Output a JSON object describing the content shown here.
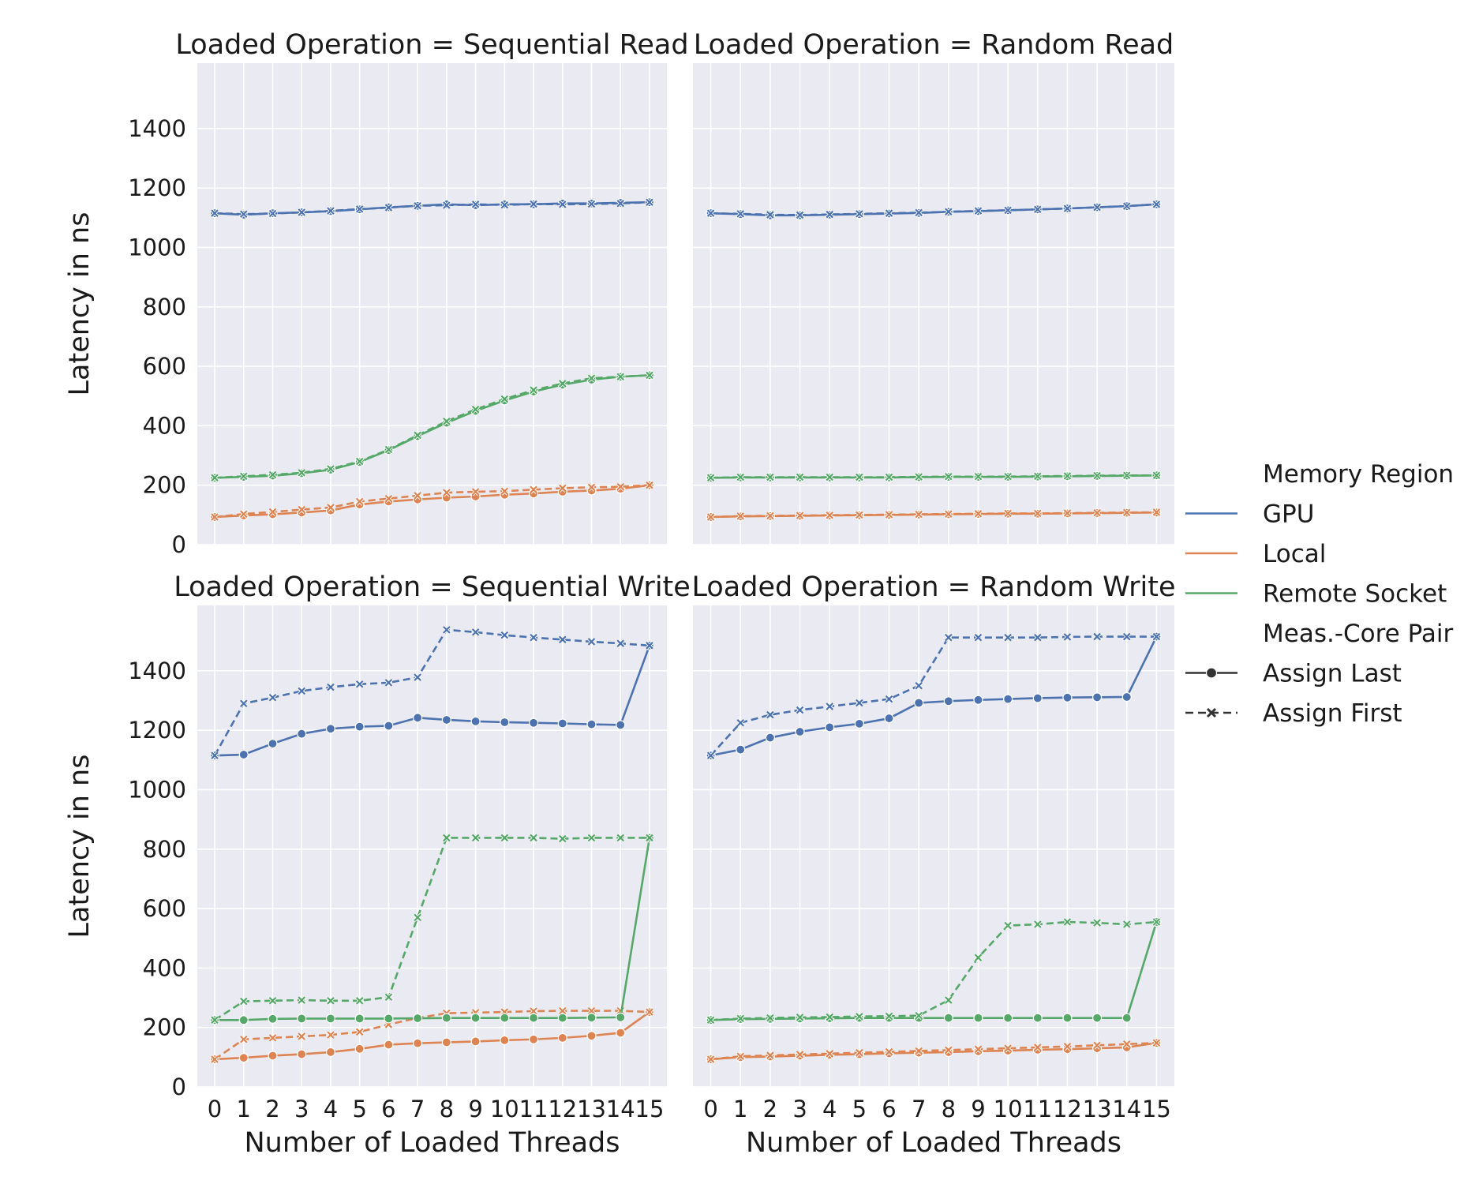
{
  "chart_data": {
    "type": "line",
    "x": [
      0,
      1,
      2,
      3,
      4,
      5,
      6,
      7,
      8,
      9,
      10,
      11,
      12,
      13,
      14,
      15
    ],
    "xlabel": "Number of Loaded Threads",
    "ylabel": "Latency in ns",
    "ylim": [
      0,
      1620
    ],
    "yticks": [
      0,
      200,
      400,
      600,
      800,
      1000,
      1200,
      1400
    ],
    "grid": true,
    "legend": {
      "placement": "right",
      "hue_title": "Memory Region",
      "style_title": "Meas.-Core Pair",
      "hue_entries": [
        {
          "name": "GPU",
          "color": "#4c72b0"
        },
        {
          "name": "Local",
          "color": "#dd8452"
        },
        {
          "name": "Remote Socket",
          "color": "#55a868"
        }
      ],
      "style_entries": [
        {
          "name": "Assign Last",
          "dash": "solid",
          "marker": "circle"
        },
        {
          "name": "Assign First",
          "dash": "dashed",
          "marker": "x"
        }
      ]
    },
    "panels": [
      {
        "title": "Loaded Operation = Sequential Read",
        "series": [
          {
            "region": "GPU",
            "pair": "Assign Last",
            "values": [
              1115,
              1110,
              1115,
              1118,
              1122,
              1128,
              1135,
              1140,
              1145,
              1142,
              1145,
              1145,
              1148,
              1148,
              1150,
              1152
            ]
          },
          {
            "region": "GPU",
            "pair": "Assign First",
            "values": [
              1115,
              1112,
              1114,
              1118,
              1123,
              1129,
              1134,
              1140,
              1142,
              1145,
              1143,
              1146,
              1145,
              1146,
              1148,
              1152
            ]
          },
          {
            "region": "Local",
            "pair": "Assign Last",
            "values": [
              93,
              98,
              102,
              108,
              115,
              135,
              145,
              152,
              158,
              162,
              168,
              172,
              178,
              182,
              188,
              200
            ]
          },
          {
            "region": "Local",
            "pair": "Assign First",
            "values": [
              93,
              103,
              110,
              118,
              125,
              145,
              155,
              165,
              175,
              178,
              180,
              185,
              190,
              193,
              195,
              200
            ]
          },
          {
            "region": "Remote Socket",
            "pair": "Assign Last",
            "values": [
              225,
              228,
              232,
              240,
              252,
              278,
              318,
              365,
              410,
              450,
              485,
              515,
              538,
              555,
              565,
              570
            ]
          },
          {
            "region": "Remote Socket",
            "pair": "Assign First",
            "values": [
              225,
              230,
              235,
              242,
              255,
              280,
              320,
              368,
              415,
              455,
              490,
              520,
              542,
              560,
              565,
              570
            ]
          }
        ]
      },
      {
        "title": "Loaded Operation = Random Read",
        "series": [
          {
            "region": "GPU",
            "pair": "Assign Last",
            "values": [
              1115,
              1112,
              1108,
              1108,
              1110,
              1112,
              1114,
              1116,
              1120,
              1122,
              1125,
              1128,
              1131,
              1135,
              1139,
              1145
            ]
          },
          {
            "region": "GPU",
            "pair": "Assign First",
            "values": [
              1115,
              1113,
              1110,
              1109,
              1111,
              1113,
              1115,
              1117,
              1120,
              1123,
              1125,
              1128,
              1131,
              1135,
              1139,
              1145
            ]
          },
          {
            "region": "Local",
            "pair": "Assign Last",
            "values": [
              93,
              95,
              96,
              97,
              98,
              99,
              100,
              101,
              102,
              103,
              104,
              104,
              105,
              106,
              107,
              108
            ]
          },
          {
            "region": "Local",
            "pair": "Assign First",
            "values": [
              93,
              96,
              97,
              98,
              99,
              100,
              101,
              102,
              103,
              104,
              105,
              105,
              106,
              107,
              108,
              109
            ]
          },
          {
            "region": "Remote Socket",
            "pair": "Assign Last",
            "values": [
              225,
              226,
              226,
              226,
              226,
              226,
              226,
              227,
              228,
              228,
              228,
              229,
              230,
              231,
              232,
              233
            ]
          },
          {
            "region": "Remote Socket",
            "pair": "Assign First",
            "values": [
              225,
              227,
              227,
              227,
              227,
              227,
              227,
              228,
              229,
              229,
              229,
              230,
              231,
              232,
              233,
              233
            ]
          }
        ]
      },
      {
        "title": "Loaded Operation = Sequential Write",
        "series": [
          {
            "region": "GPU",
            "pair": "Assign Last",
            "values": [
              1115,
              1118,
              1155,
              1188,
              1205,
              1212,
              1215,
              1242,
              1235,
              1230,
              1227,
              1225,
              1223,
              1220,
              1218,
              1485
            ]
          },
          {
            "region": "GPU",
            "pair": "Assign First",
            "values": [
              1115,
              1290,
              1310,
              1332,
              1345,
              1355,
              1360,
              1378,
              1538,
              1530,
              1520,
              1512,
              1505,
              1498,
              1492,
              1485
            ]
          },
          {
            "region": "Local",
            "pair": "Assign Last",
            "values": [
              93,
              98,
              105,
              110,
              117,
              128,
              142,
              147,
              150,
              153,
              157,
              160,
              165,
              172,
              182,
              252
            ]
          },
          {
            "region": "Local",
            "pair": "Assign First",
            "values": [
              93,
              160,
              165,
              170,
              175,
              185,
              210,
              232,
              248,
              250,
              252,
              255,
              256,
              256,
              256,
              252
            ]
          },
          {
            "region": "Remote Socket",
            "pair": "Assign Last",
            "values": [
              225,
              225,
              229,
              230,
              230,
              230,
              230,
              231,
              232,
              232,
              232,
              232,
              232,
              233,
              234,
              838
            ]
          },
          {
            "region": "Remote Socket",
            "pair": "Assign First",
            "values": [
              225,
              288,
              290,
              292,
              290,
              290,
              302,
              570,
              838,
              838,
              838,
              838,
              835,
              838,
              838,
              838
            ]
          }
        ]
      },
      {
        "title": "Loaded Operation = Random Write",
        "series": [
          {
            "region": "GPU",
            "pair": "Assign Last",
            "values": [
              1115,
              1135,
              1175,
              1195,
              1210,
              1222,
              1240,
              1292,
              1298,
              1302,
              1305,
              1308,
              1310,
              1311,
              1312,
              1515
            ]
          },
          {
            "region": "GPU",
            "pair": "Assign First",
            "values": [
              1115,
              1225,
              1252,
              1268,
              1280,
              1292,
              1305,
              1350,
              1512,
              1512,
              1512,
              1512,
              1514,
              1515,
              1515,
              1515
            ]
          },
          {
            "region": "Local",
            "pair": "Assign Last",
            "values": [
              93,
              100,
              102,
              105,
              108,
              110,
              113,
              115,
              117,
              120,
              122,
              125,
              127,
              130,
              133,
              148
            ]
          },
          {
            "region": "Local",
            "pair": "Assign First",
            "values": [
              93,
              103,
              106,
              109,
              112,
              115,
              118,
              121,
              124,
              127,
              130,
              133,
              136,
              140,
              144,
              148
            ]
          },
          {
            "region": "Remote Socket",
            "pair": "Assign Last",
            "values": [
              225,
              228,
              229,
              230,
              231,
              232,
              232,
              232,
              232,
              232,
              232,
              232,
              232,
              232,
              232,
              555
            ]
          },
          {
            "region": "Remote Socket",
            "pair": "Assign First",
            "values": [
              225,
              230,
              232,
              234,
              235,
              237,
              238,
              240,
              292,
              435,
              543,
              547,
              555,
              552,
              547,
              555
            ]
          }
        ]
      }
    ]
  }
}
